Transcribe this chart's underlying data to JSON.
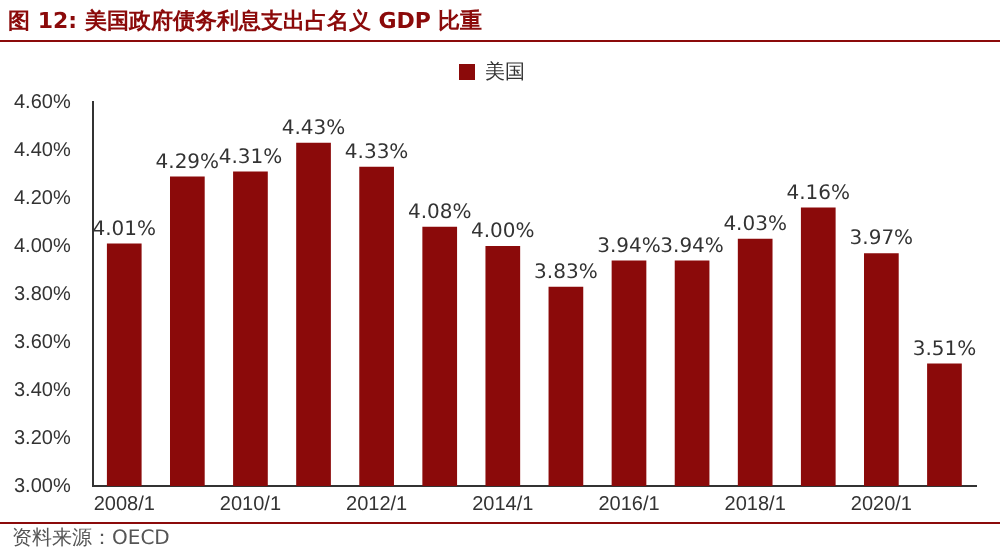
{
  "chart_data": {
    "type": "bar",
    "title": "图 12: 美国政府债务利息支出占名义 GDP 比重",
    "categories": [
      "2008/1",
      null,
      "2010/1",
      null,
      "2012/1",
      null,
      "2014/1",
      null,
      "2016/1",
      null,
      "2018/1",
      null,
      "2020/1",
      null
    ],
    "series": [
      {
        "name": "美国",
        "color": "#8b0a0a",
        "values": [
          4.01,
          4.29,
          4.31,
          4.43,
          4.33,
          4.08,
          4.0,
          3.83,
          3.94,
          3.94,
          4.03,
          4.16,
          3.97,
          3.51
        ],
        "value_labels": [
          "4.01%",
          "4.29%",
          "4.31%",
          "4.43%",
          "4.33%",
          "4.08%",
          "4.00%",
          "3.83%",
          "3.94%",
          "3.94%",
          "4.03%",
          "4.16%",
          "3.97%",
          "3.51%"
        ]
      }
    ],
    "ylim": [
      3,
      4.6
    ],
    "yticks": [
      {
        "value": 3,
        "label": "3.00%"
      },
      {
        "value": 3.2,
        "label": "3.20%"
      },
      {
        "value": 3.4,
        "label": "3.40%"
      },
      {
        "value": 3.6,
        "label": "3.60%"
      },
      {
        "value": 3.8,
        "label": "3.80%"
      },
      {
        "value": 4,
        "label": "4.00%"
      },
      {
        "value": 4.2,
        "label": "4.20%"
      },
      {
        "value": 4.4,
        "label": "4.40%"
      },
      {
        "value": 4.6,
        "label": "4.60%"
      }
    ],
    "grid": false,
    "legend": "top right",
    "annotations": [
      "资料来源：OECD"
    ]
  }
}
